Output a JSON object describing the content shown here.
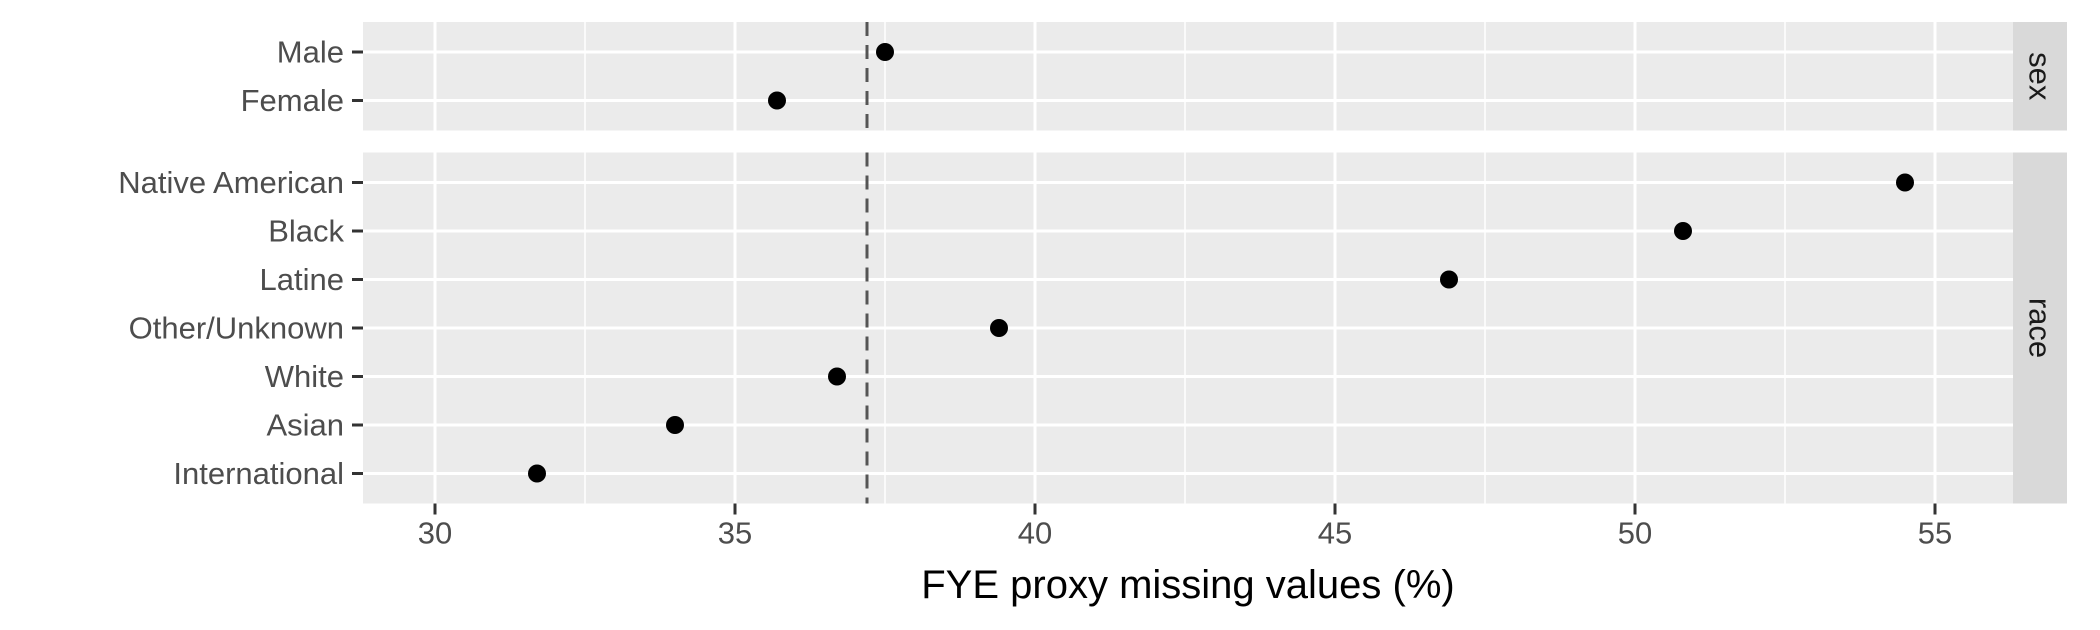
{
  "chart_data": {
    "type": "scatter",
    "xlabel": "FYE proxy missing values (%)",
    "ylabel": "",
    "xlim": [
      28.8,
      56.3
    ],
    "x_ticks": [
      "30",
      "35",
      "40",
      "45",
      "50",
      "55"
    ],
    "reference_line_x": 37.2,
    "grid": true,
    "panels": [
      {
        "strip": "sex",
        "categories": [
          "Male",
          "Female"
        ],
        "values": [
          37.5,
          35.7
        ]
      },
      {
        "strip": "race",
        "categories": [
          "Native American",
          "Black",
          "Latine",
          "Other/Unknown",
          "White",
          "Asian",
          "International"
        ],
        "values": [
          54.5,
          50.8,
          46.9,
          39.4,
          36.7,
          34.0,
          31.7
        ]
      }
    ]
  }
}
